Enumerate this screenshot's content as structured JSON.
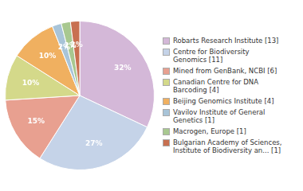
{
  "chart_data": {
    "type": "pie",
    "categories": [
      "Robarts Research Institute [13]",
      "Centre for Biodiversity\nGenomics [11]",
      "Mined from GenBank, NCBI [6]",
      "Canadian Centre for DNA\nBarcoding [4]",
      "Beijing Genomics Institute [4]",
      "Vavilov Institute of General\nGenetics [1]",
      "Macrogen, Europe [1]",
      "Bulgarian Academy of Sciences,\nInstitute of Biodiversity an... [1]"
    ],
    "values": [
      32,
      27,
      15,
      10,
      10,
      2,
      2,
      2
    ],
    "value_labels": [
      "32%",
      "27%",
      "15%",
      "10%",
      "10%",
      "2%",
      "2%",
      "2%"
    ],
    "colors": [
      "#d4b8d8",
      "#c5d3e8",
      "#e8a090",
      "#d4d98a",
      "#f0b060",
      "#a8c4d8",
      "#a8c890",
      "#c87050"
    ],
    "data_labels": true,
    "legend": "right"
  }
}
